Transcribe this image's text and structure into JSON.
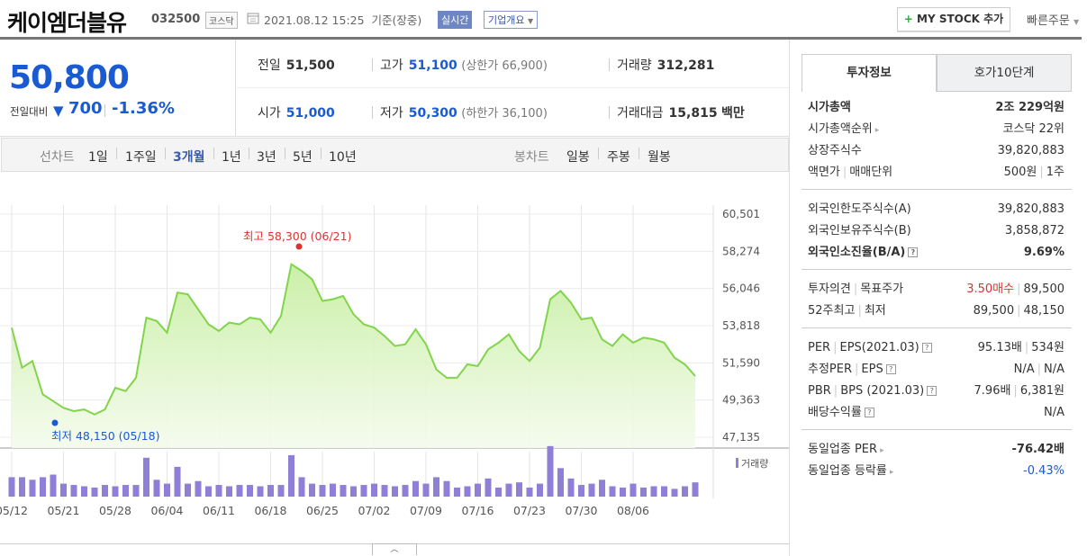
{
  "header": {
    "name": "케이엠더블유",
    "code": "032500",
    "market": "코스닥",
    "datetime": "2021.08.12 15:25",
    "basis": "기준(장중)",
    "realtime": "실시간",
    "corp_info": "기업개요",
    "mystock_label": "MY STOCK 추가",
    "quick_order": "빠른주문"
  },
  "price": {
    "current": "50,800",
    "prev_day_label": "전일대비",
    "change": "700",
    "change_pct": "-1.36%",
    "prev_close_label": "전일",
    "prev_close": "51,500",
    "high_label": "고가",
    "high": "51,100",
    "upper_limit": "(상한가 66,900)",
    "volume_label": "거래량",
    "volume": "312,281",
    "open_label": "시가",
    "open": "51,000",
    "low_label": "저가",
    "low": "50,300",
    "lower_limit": "(하한가 36,100)",
    "amount_label": "거래대금",
    "amount": "15,815",
    "amount_unit": "백만"
  },
  "tabs": {
    "line_label": "선차트",
    "line_items": [
      "1일",
      "1주일",
      "3개월",
      "1년",
      "3년",
      "5년",
      "10년"
    ],
    "active": "3개월",
    "candle_label": "봉차트",
    "candle_items": [
      "일봉",
      "주봉",
      "월봉"
    ]
  },
  "chart_data": {
    "type": "area",
    "title": "",
    "y_ticks": [
      "60,501",
      "58,274",
      "56,046",
      "53,818",
      "51,590",
      "49,363",
      "47,135"
    ],
    "ylim": [
      47135,
      60501
    ],
    "x_tick_labels": [
      "05/12",
      "05/21",
      "05/28",
      "06/04",
      "06/11",
      "06/18",
      "06/25",
      "07/02",
      "07/09",
      "07/16",
      "07/23",
      "07/30",
      "08/06"
    ],
    "max_label": "최고 58,300 (06/21)",
    "min_label": "최저 48,150 (05/18)",
    "volume_label": "거래량",
    "grid": true,
    "prices": [
      53700,
      51300,
      51700,
      49700,
      49300,
      48900,
      48700,
      48800,
      48500,
      48800,
      50100,
      49900,
      50700,
      54300,
      54100,
      53400,
      55800,
      55700,
      54800,
      53900,
      53500,
      54000,
      53900,
      54300,
      54200,
      53400,
      54400,
      57500,
      57100,
      56600,
      55300,
      55400,
      55600,
      54500,
      53900,
      53700,
      53200,
      52600,
      52700,
      53600,
      52700,
      51200,
      50700,
      50700,
      51500,
      51400,
      52400,
      52800,
      53300,
      52300,
      51700,
      52500,
      55400,
      55900,
      55200,
      54200,
      54300,
      53000,
      52600,
      53300,
      52800,
      53100,
      53000,
      52800,
      51900,
      51500,
      50800
    ],
    "volumes": [
      30,
      30,
      26,
      30,
      34,
      20,
      18,
      16,
      14,
      18,
      16,
      18,
      18,
      60,
      26,
      20,
      46,
      20,
      24,
      16,
      18,
      16,
      18,
      18,
      16,
      18,
      18,
      64,
      30,
      20,
      18,
      20,
      18,
      16,
      18,
      20,
      18,
      16,
      18,
      24,
      20,
      30,
      24,
      14,
      16,
      20,
      28,
      14,
      20,
      22,
      14,
      20,
      78,
      44,
      28,
      18,
      20,
      26,
      16,
      14,
      20,
      14,
      16,
      16,
      12,
      16,
      22
    ]
  },
  "toggle_icon": "chevron-up-icon",
  "right": {
    "tab_info": "투자정보",
    "tab_quote": "호가10단계",
    "sections": [
      [
        {
          "k": "시가총액",
          "v": "2조 229억원",
          "kb": true,
          "vb": true
        },
        {
          "k": "시가총액순위",
          "v": "코스닥 22위",
          "arrow": true
        },
        {
          "k": "상장주식수",
          "v": "39,820,883"
        },
        {
          "k": "액면가",
          "k2": "매매단위",
          "v": "500원",
          "v2": "1주"
        }
      ],
      [
        {
          "k": "외국인한도주식수(A)",
          "v": "39,820,883"
        },
        {
          "k": "외국인보유주식수(B)",
          "v": "3,858,872"
        },
        {
          "k": "외국인소진율(B/A)",
          "v": "9.69%",
          "kb": true,
          "vb": true,
          "q": true
        }
      ],
      [
        {
          "k": "투자의견",
          "k2": "목표주가",
          "v": "3.50매수",
          "v2": "89,500",
          "vred": true
        },
        {
          "k": "52주최고",
          "k2": "최저",
          "v": "89,500",
          "v2": "48,150"
        }
      ],
      [
        {
          "k": "PER",
          "k2": "EPS(2021.03)",
          "v": "95.13배",
          "v2": "534원",
          "q": true
        },
        {
          "k": "추정PER",
          "k2": "EPS",
          "v": "N/A",
          "v2": "N/A",
          "q": true
        },
        {
          "k": "PBR",
          "k2": "BPS (2021.03)",
          "v": "7.96배",
          "v2": "6,381원",
          "q": true
        },
        {
          "k": "배당수익률",
          "v": "N/A",
          "q": true
        }
      ],
      [
        {
          "k": "동일업종 PER",
          "v": "-76.42배",
          "vb": true,
          "arrow": true
        },
        {
          "k": "동일업종 등락률",
          "v": "-0.43%",
          "vblue": true,
          "arrow": true
        }
      ]
    ]
  },
  "colors": {
    "blue": "#1a5bd1",
    "red": "#e0312f",
    "line": "#82d44a",
    "volume": "#8f7fd6"
  }
}
